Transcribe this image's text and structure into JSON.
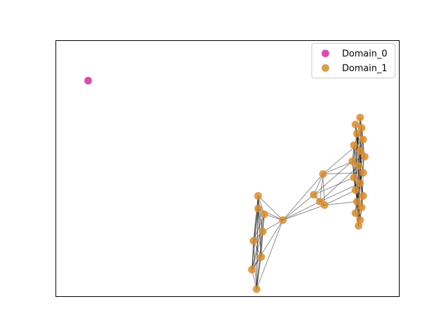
{
  "chart_data": {
    "type": "scatter",
    "title": "",
    "xlabel": "",
    "ylabel": "",
    "grid": false,
    "axis_ticks": false,
    "legend_placement": "top-right",
    "xlim": [
      -1.0,
      1.0
    ],
    "ylim": [
      -1.0,
      1.0
    ],
    "series": [
      {
        "name": "Domain_0",
        "color": "#d62ea0",
        "points": [
          {
            "id": "a0",
            "x": -0.9,
            "y": 0.76
          }
        ]
      },
      {
        "name": "Domain_1",
        "color": "#d98c2b",
        "points": [
          {
            "id": "m1",
            "x": 0.2,
            "y": -0.24
          },
          {
            "id": "m2",
            "x": 0.2,
            "y": -0.35
          },
          {
            "id": "m3",
            "x": 0.24,
            "y": -0.4
          },
          {
            "id": "m4",
            "x": 0.23,
            "y": -0.55
          },
          {
            "id": "m5",
            "x": 0.17,
            "y": -0.63
          },
          {
            "id": "m6",
            "x": 0.16,
            "y": -0.88
          },
          {
            "id": "m7",
            "x": 0.19,
            "y": -1.05
          },
          {
            "id": "m8",
            "x": 0.22,
            "y": -0.77
          },
          {
            "id": "h1",
            "x": 0.36,
            "y": -0.45
          },
          {
            "id": "b1",
            "x": 0.62,
            "y": -0.05
          },
          {
            "id": "b2",
            "x": 0.56,
            "y": -0.23
          },
          {
            "id": "b3",
            "x": 0.6,
            "y": -0.29
          },
          {
            "id": "b4",
            "x": 0.63,
            "y": -0.32
          },
          {
            "id": "c1",
            "x": 0.86,
            "y": 0.44
          },
          {
            "id": "c2",
            "x": 0.83,
            "y": 0.38
          },
          {
            "id": "c3",
            "x": 0.87,
            "y": 0.35
          },
          {
            "id": "c4",
            "x": 0.84,
            "y": 0.3
          },
          {
            "id": "c5",
            "x": 0.88,
            "y": 0.25
          },
          {
            "id": "c6",
            "x": 0.82,
            "y": 0.2
          },
          {
            "id": "c7",
            "x": 0.86,
            "y": 0.15
          },
          {
            "id": "c8",
            "x": 0.89,
            "y": 0.1
          },
          {
            "id": "c9",
            "x": 0.81,
            "y": 0.06
          },
          {
            "id": "c10",
            "x": 0.85,
            "y": 0.02
          },
          {
            "id": "c11",
            "x": 0.88,
            "y": -0.04
          },
          {
            "id": "c12",
            "x": 0.82,
            "y": -0.08
          },
          {
            "id": "c13",
            "x": 0.86,
            "y": -0.13
          },
          {
            "id": "c14",
            "x": 0.83,
            "y": -0.19
          },
          {
            "id": "c15",
            "x": 0.88,
            "y": -0.24
          },
          {
            "id": "c16",
            "x": 0.84,
            "y": -0.29
          },
          {
            "id": "c17",
            "x": 0.87,
            "y": -0.34
          },
          {
            "id": "c18",
            "x": 0.83,
            "y": -0.39
          },
          {
            "id": "c19",
            "x": 0.86,
            "y": -0.45
          },
          {
            "id": "c20",
            "x": 0.85,
            "y": -0.5
          }
        ]
      }
    ],
    "edges": [
      [
        "m1",
        "m2"
      ],
      [
        "m1",
        "m3"
      ],
      [
        "m1",
        "m4"
      ],
      [
        "m1",
        "m5"
      ],
      [
        "m1",
        "m6"
      ],
      [
        "m1",
        "m7"
      ],
      [
        "m1",
        "m8"
      ],
      [
        "m2",
        "m3"
      ],
      [
        "m2",
        "m4"
      ],
      [
        "m2",
        "m5"
      ],
      [
        "m2",
        "m6"
      ],
      [
        "m2",
        "m7"
      ],
      [
        "m2",
        "m8"
      ],
      [
        "m3",
        "m4"
      ],
      [
        "m3",
        "m5"
      ],
      [
        "m3",
        "m6"
      ],
      [
        "m3",
        "m7"
      ],
      [
        "m4",
        "m5"
      ],
      [
        "m4",
        "m6"
      ],
      [
        "m4",
        "m7"
      ],
      [
        "m4",
        "m8"
      ],
      [
        "m5",
        "m6"
      ],
      [
        "m5",
        "m7"
      ],
      [
        "m5",
        "m8"
      ],
      [
        "m6",
        "m7"
      ],
      [
        "m6",
        "m8"
      ],
      [
        "m7",
        "m8"
      ],
      [
        "h1",
        "m1"
      ],
      [
        "h1",
        "m2"
      ],
      [
        "h1",
        "m3"
      ],
      [
        "h1",
        "m4"
      ],
      [
        "h1",
        "m6"
      ],
      [
        "h1",
        "m7"
      ],
      [
        "h1",
        "b1"
      ],
      [
        "h1",
        "b2"
      ],
      [
        "h1",
        "b3"
      ],
      [
        "h1",
        "b4"
      ],
      [
        "b1",
        "b2"
      ],
      [
        "b1",
        "b3"
      ],
      [
        "b1",
        "b4"
      ],
      [
        "b2",
        "b3"
      ],
      [
        "b3",
        "b4"
      ],
      [
        "b2",
        "b4"
      ],
      [
        "b1",
        "c5"
      ],
      [
        "b1",
        "c8"
      ],
      [
        "b1",
        "c11"
      ],
      [
        "b2",
        "c9"
      ],
      [
        "b2",
        "c12"
      ],
      [
        "b3",
        "c10"
      ],
      [
        "b3",
        "c13"
      ],
      [
        "b4",
        "c14"
      ],
      [
        "b4",
        "c16"
      ],
      [
        "c1",
        "c3"
      ],
      [
        "c1",
        "c5"
      ],
      [
        "c1",
        "c8"
      ],
      [
        "c1",
        "c12"
      ],
      [
        "c1",
        "c17"
      ],
      [
        "c2",
        "c4"
      ],
      [
        "c2",
        "c7"
      ],
      [
        "c2",
        "c11"
      ],
      [
        "c2",
        "c15"
      ],
      [
        "c2",
        "c20"
      ],
      [
        "c3",
        "c6"
      ],
      [
        "c3",
        "c9"
      ],
      [
        "c3",
        "c13"
      ],
      [
        "c3",
        "c18"
      ],
      [
        "c4",
        "c8"
      ],
      [
        "c4",
        "c10"
      ],
      [
        "c4",
        "c14"
      ],
      [
        "c4",
        "c19"
      ],
      [
        "c5",
        "c7"
      ],
      [
        "c5",
        "c11"
      ],
      [
        "c5",
        "c16"
      ],
      [
        "c6",
        "c9"
      ],
      [
        "c6",
        "c12"
      ],
      [
        "c6",
        "c15"
      ],
      [
        "c6",
        "c20"
      ],
      [
        "c7",
        "c10"
      ],
      [
        "c7",
        "c13"
      ],
      [
        "c7",
        "c17"
      ],
      [
        "c8",
        "c12"
      ],
      [
        "c8",
        "c18"
      ],
      [
        "c9",
        "c14"
      ],
      [
        "c9",
        "c19"
      ],
      [
        "c10",
        "c15"
      ],
      [
        "c10",
        "c20"
      ],
      [
        "c11",
        "c14"
      ],
      [
        "c11",
        "c17"
      ],
      [
        "c12",
        "c16"
      ],
      [
        "c12",
        "c19"
      ],
      [
        "c13",
        "c18"
      ],
      [
        "c13",
        "c20"
      ],
      [
        "c14",
        "c17"
      ],
      [
        "c15",
        "c19"
      ],
      [
        "c16",
        "c20"
      ],
      [
        "c17",
        "c19"
      ],
      [
        "c18",
        "c20"
      ]
    ]
  }
}
